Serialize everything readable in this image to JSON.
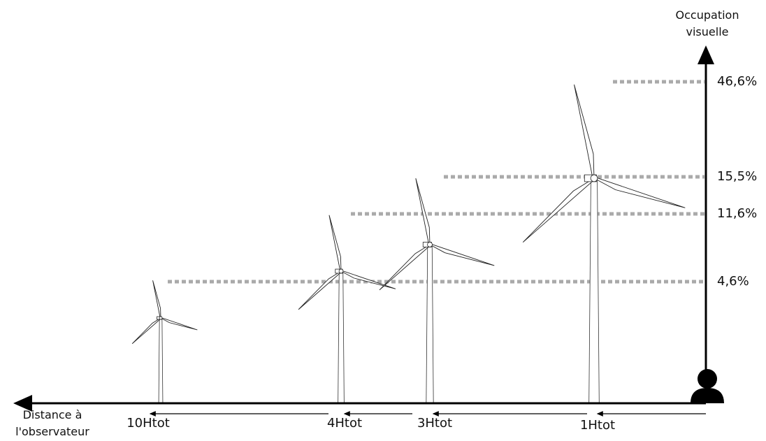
{
  "y_axis_label": "Occupation visuelle",
  "x_axis_label": "Distance à l'observateur",
  "levels": [
    "46,6%",
    "15,5%",
    "11,6%",
    "4,6%"
  ],
  "distances": [
    "10Htot",
    "4Htot",
    "3Htot",
    "1Htot"
  ]
}
